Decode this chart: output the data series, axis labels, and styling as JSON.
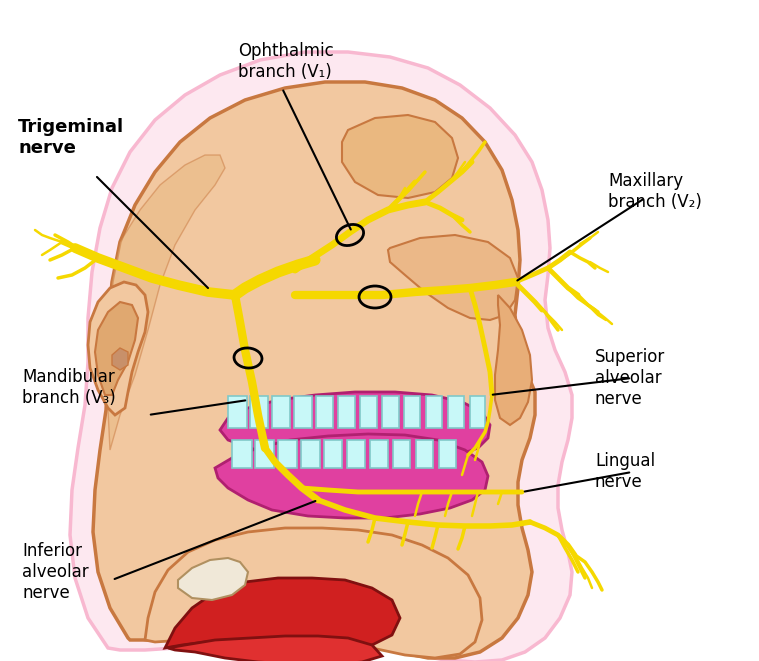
{
  "bg_color": "#ffffff",
  "skin_color": "#f2c8a0",
  "skin_outline": "#c87840",
  "skin_dark": "#e0a870",
  "nerve_color": "#f5d800",
  "nerve_dark": "#d4a800",
  "gum_color": "#e040a0",
  "gum_outline": "#b02070",
  "tooth_color": "#c8f8f8",
  "tooth_outline": "#80c8c8",
  "muscle_color1": "#d02020",
  "muscle_color2": "#e03030",
  "muscle_outline": "#801010",
  "pink_border": "#f8b8d0",
  "pink_fill": "#fde8f0",
  "labels": {
    "trigeminal": "Trigeminal\nnerve",
    "ophthalmic": "Ophthalmic\nbranch (V₁)",
    "maxillary": "Maxillary\nbranch (V₂)",
    "mandibular": "Mandibular\nbranch (V₃)",
    "superior_alveolar": "Superior\nalveolar\nnerve",
    "lingual": "Lingual\nnerve",
    "inferior_alveolar": "Inferior\nalveolar\nnerve"
  },
  "figsize": [
    7.59,
    6.61
  ],
  "dpi": 100
}
